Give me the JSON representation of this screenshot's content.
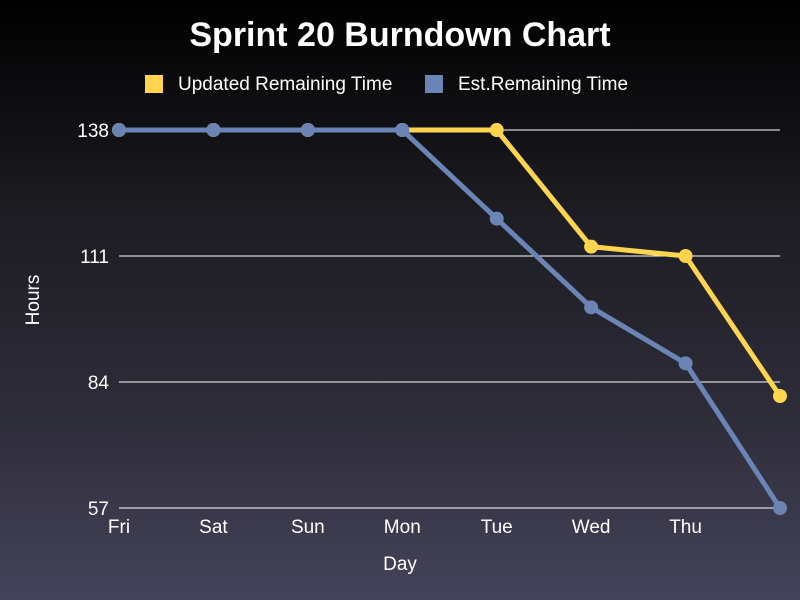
{
  "chart_data": {
    "type": "line",
    "title": "Sprint 20 Burndown Chart",
    "xlabel": "Day",
    "ylabel": "Hours",
    "categories": [
      "Fri",
      "Sat",
      "Sun",
      "Mon",
      "Tue",
      "Wed",
      "Thu",
      ""
    ],
    "y_ticks": [
      57,
      84,
      111,
      138
    ],
    "ylim": [
      57,
      138
    ],
    "grid": true,
    "legend_position": "top",
    "series": [
      {
        "name": "Updated Remaining Time",
        "color": "#ffd54f",
        "values": [
          138,
          138,
          138,
          138,
          138,
          113,
          111,
          81
        ]
      },
      {
        "name": "Est.Remaining Time",
        "color": "#6a84b5",
        "values": [
          138,
          138,
          138,
          138,
          119,
          100,
          88,
          57
        ]
      }
    ]
  }
}
